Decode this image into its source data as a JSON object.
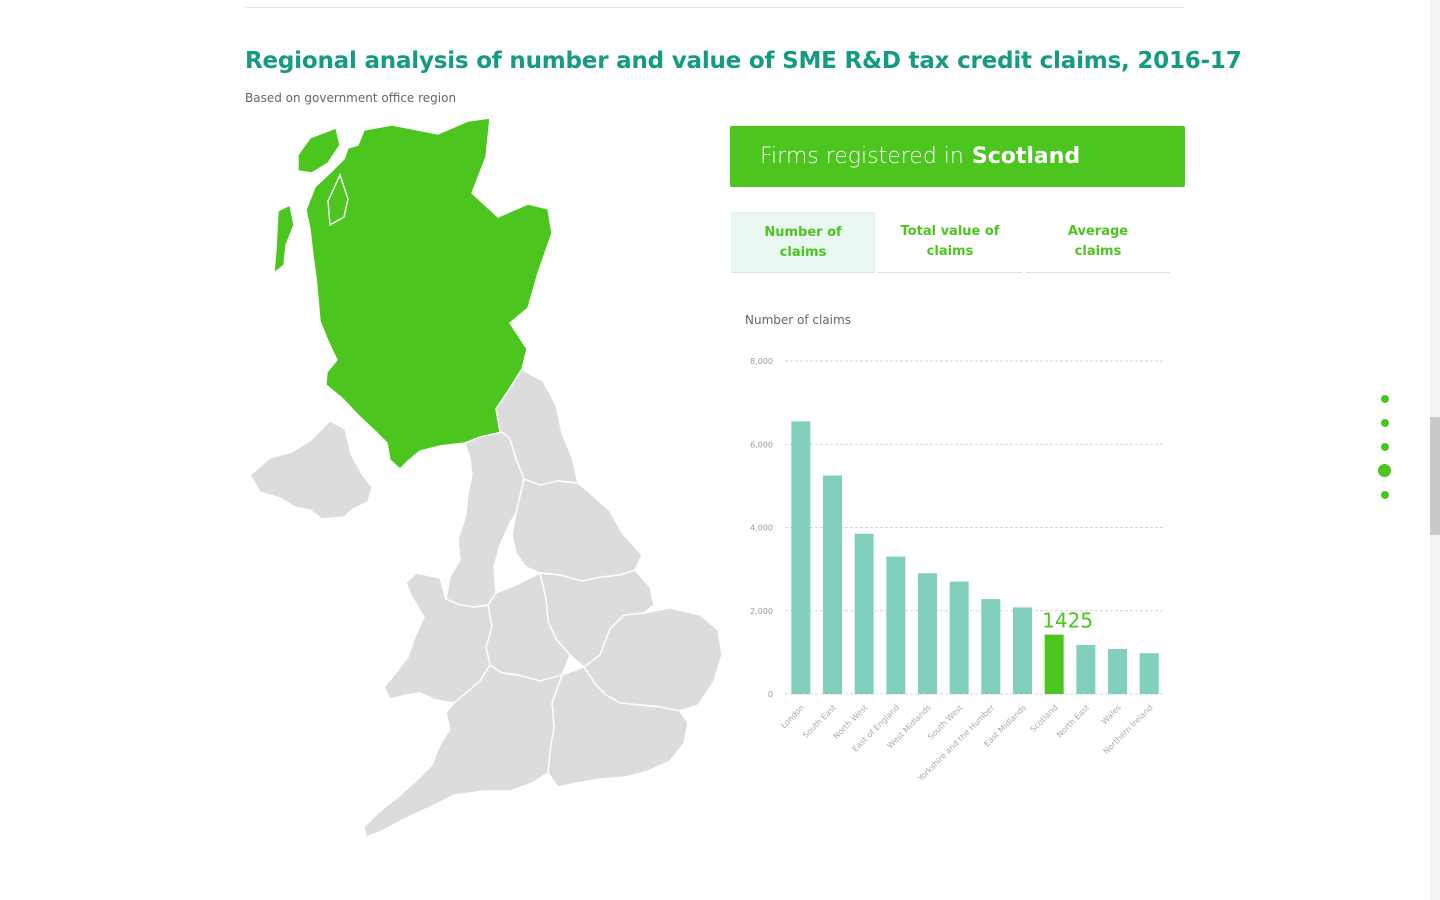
{
  "header": {
    "title": "Regional analysis of number and value of SME R&D tax credit claims, 2016-17",
    "subtitle": "Based on government office region"
  },
  "banner": {
    "prefix": "Firms registered in",
    "region": "Scotland"
  },
  "tabs": [
    {
      "label": "Number of claims",
      "active": true
    },
    {
      "label": "Total value of claims",
      "active": false
    },
    {
      "label": "Average claims",
      "active": false
    }
  ],
  "map": {
    "selected_region": "Scotland",
    "regions": [
      "Scotland",
      "Northern Ireland",
      "North East",
      "North West",
      "Yorkshire and the Humber",
      "East Midlands",
      "West Midlands",
      "Wales",
      "East of England",
      "London",
      "South East",
      "South West"
    ]
  },
  "chart_data": {
    "type": "bar",
    "ylabel": "Number of claims",
    "ylim": [
      0,
      8000
    ],
    "yticks": [
      0,
      2000,
      4000,
      6000,
      8000
    ],
    "ytick_labels": [
      "0",
      "2,000",
      "4,000",
      "6,000",
      "8,000"
    ],
    "categories": [
      "London",
      "South East",
      "North West",
      "East of England",
      "West Midlands",
      "South West",
      "Yorkshire and the Humber",
      "East Midlands",
      "Scotland",
      "North East",
      "Wales",
      "Northern Ireland"
    ],
    "values": [
      6550,
      5250,
      3850,
      3300,
      2900,
      2700,
      2280,
      2080,
      1425,
      1180,
      1080,
      980
    ],
    "highlight": "Scotland",
    "highlight_label": "1425",
    "grid": true
  },
  "colors": {
    "accent": "#4cc61f",
    "title": "#159b82",
    "bar": "#82cfbd",
    "map_default": "#dcdcde"
  },
  "pager": {
    "count": 5,
    "active_index": 3
  }
}
